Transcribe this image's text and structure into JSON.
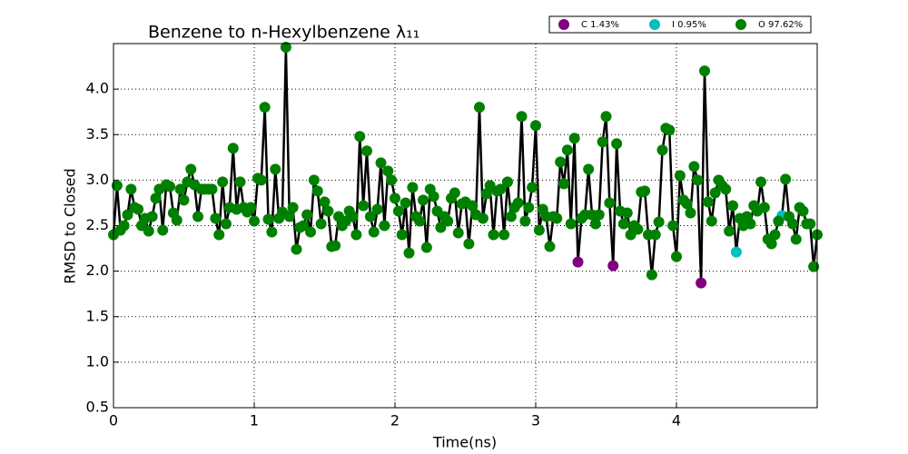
{
  "chart_data": {
    "type": "line-scatter",
    "title": "Benzene to n-Hexylbenzene λ₁₁",
    "x_label": "Time(ns)",
    "y_label": "RMSD to Closed",
    "xlim": [
      0,
      5
    ],
    "ylim": [
      0.5,
      4.5
    ],
    "xticks": [
      0,
      1,
      2,
      3,
      4
    ],
    "yticks": [
      0.5,
      {
        "value": 1,
        "label": "1.0"
      },
      1.5,
      {
        "value": 2,
        "label": "2.0"
      },
      2.5,
      {
        "value": 3,
        "label": "3.0"
      },
      3.5,
      {
        "value": 4,
        "label": "4.0"
      }
    ],
    "grid": true,
    "line_color": "#000000",
    "legend": "upper right",
    "series": [
      {
        "name": "C 1.43%",
        "color": "#800080",
        "x": [
          3.3,
          3.55,
          4.175
        ],
        "values": [
          2.1,
          2.06,
          1.87
        ]
      },
      {
        "name": "I 0.95%",
        "color": "#00bfbf",
        "x": [
          4.425,
          4.75
        ],
        "values": [
          2.21,
          2.61
        ]
      },
      {
        "name": "O 97.62%",
        "color": "#008000",
        "x": [
          0,
          0.025,
          0.05,
          0.075,
          0.1,
          0.125,
          0.15,
          0.175,
          0.2,
          0.225,
          0.25,
          0.275,
          0.3,
          0.325,
          0.35,
          0.375,
          0.4,
          0.425,
          0.45,
          0.475,
          0.5,
          0.525,
          0.55,
          0.575,
          0.6,
          0.625,
          0.65,
          0.675,
          0.7,
          0.725,
          0.75,
          0.775,
          0.8,
          0.825,
          0.85,
          0.875,
          0.9,
          0.925,
          0.95,
          0.975,
          1,
          1.025,
          1.05,
          1.075,
          1.1,
          1.125,
          1.15,
          1.175,
          1.2,
          1.225,
          1.25,
          1.275,
          1.3,
          1.325,
          1.35,
          1.375,
          1.4,
          1.425,
          1.45,
          1.475,
          1.5,
          1.525,
          1.55,
          1.575,
          1.6,
          1.625,
          1.65,
          1.675,
          1.7,
          1.725,
          1.75,
          1.775,
          1.8,
          1.825,
          1.85,
          1.875,
          1.9,
          1.925,
          1.95,
          1.975,
          2,
          2.025,
          2.05,
          2.075,
          2.1,
          2.125,
          2.15,
          2.175,
          2.2,
          2.225,
          2.25,
          2.275,
          2.3,
          2.325,
          2.35,
          2.375,
          2.4,
          2.425,
          2.45,
          2.475,
          2.5,
          2.525,
          2.55,
          2.575,
          2.6,
          2.625,
          2.65,
          2.675,
          2.7,
          2.725,
          2.75,
          2.775,
          2.8,
          2.825,
          2.85,
          2.875,
          2.9,
          2.925,
          2.95,
          2.975,
          3,
          3.025,
          3.05,
          3.075,
          3.1,
          3.125,
          3.15,
          3.175,
          3.2,
          3.225,
          3.25,
          3.275,
          3.325,
          3.35,
          3.375,
          3.4,
          3.425,
          3.45,
          3.475,
          3.5,
          3.525,
          3.575,
          3.6,
          3.625,
          3.65,
          3.675,
          3.7,
          3.725,
          3.75,
          3.775,
          3.8,
          3.825,
          3.85,
          3.875,
          3.9,
          3.925,
          3.95,
          3.975,
          4,
          4.025,
          4.05,
          4.075,
          4.1,
          4.125,
          4.15,
          4.2,
          4.225,
          4.25,
          4.275,
          4.3,
          4.325,
          4.35,
          4.375,
          4.4,
          4.45,
          4.475,
          4.5,
          4.525,
          4.55,
          4.575,
          4.6,
          4.625,
          4.65,
          4.675,
          4.7,
          4.725,
          4.775,
          4.8,
          4.825,
          4.85,
          4.875,
          4.9,
          4.925,
          4.95,
          4.975,
          5
        ],
        "values": [
          2.4,
          2.94,
          2.45,
          2.5,
          2.62,
          2.9,
          2.7,
          2.68,
          2.5,
          2.58,
          2.44,
          2.6,
          2.8,
          2.9,
          2.45,
          2.95,
          2.93,
          2.64,
          2.56,
          2.9,
          2.78,
          2.98,
          3.12,
          2.95,
          2.6,
          2.9,
          2.9,
          2.9,
          2.9,
          2.58,
          2.4,
          2.98,
          2.52,
          2.7,
          3.35,
          2.68,
          2.98,
          2.7,
          2.65,
          2.7,
          2.55,
          3.02,
          3.0,
          3.8,
          2.57,
          2.43,
          3.12,
          2.58,
          2.65,
          4.46,
          2.6,
          2.7,
          2.24,
          2.48,
          2.5,
          2.62,
          2.43,
          3.0,
          2.88,
          2.52,
          2.76,
          2.66,
          2.27,
          2.28,
          2.6,
          2.5,
          2.55,
          2.66,
          2.6,
          2.4,
          3.48,
          2.72,
          3.32,
          2.6,
          2.43,
          2.68,
          3.19,
          2.5,
          3.1,
          3.0,
          2.8,
          2.66,
          2.4,
          2.75,
          2.2,
          2.92,
          2.6,
          2.55,
          2.78,
          2.26,
          2.9,
          2.82,
          2.66,
          2.48,
          2.6,
          2.55,
          2.8,
          2.86,
          2.42,
          2.74,
          2.76,
          2.3,
          2.72,
          2.62,
          3.8,
          2.58,
          2.85,
          2.94,
          2.4,
          2.88,
          2.9,
          2.4,
          2.98,
          2.6,
          2.7,
          2.75,
          3.7,
          2.55,
          2.7,
          2.92,
          3.6,
          2.45,
          2.68,
          2.6,
          2.27,
          2.6,
          2.58,
          3.2,
          2.96,
          3.33,
          2.52,
          3.46,
          2.58,
          2.62,
          3.12,
          2.62,
          2.52,
          2.62,
          3.42,
          3.7,
          2.75,
          3.4,
          2.66,
          2.52,
          2.64,
          2.4,
          2.5,
          2.46,
          2.87,
          2.88,
          2.4,
          1.96,
          2.4,
          2.54,
          3.33,
          3.57,
          3.55,
          2.5,
          2.16,
          3.05,
          2.78,
          2.74,
          2.64,
          3.15,
          3.0,
          4.2,
          2.76,
          2.55,
          2.86,
          3.0,
          2.94,
          2.9,
          2.44,
          2.72,
          2.58,
          2.5,
          2.6,
          2.52,
          2.72,
          2.66,
          2.98,
          2.7,
          2.35,
          2.3,
          2.4,
          2.55,
          3.01,
          2.6,
          2.52,
          2.35,
          2.7,
          2.66,
          2.52,
          2.52,
          2.05,
          2.4
        ]
      }
    ]
  }
}
